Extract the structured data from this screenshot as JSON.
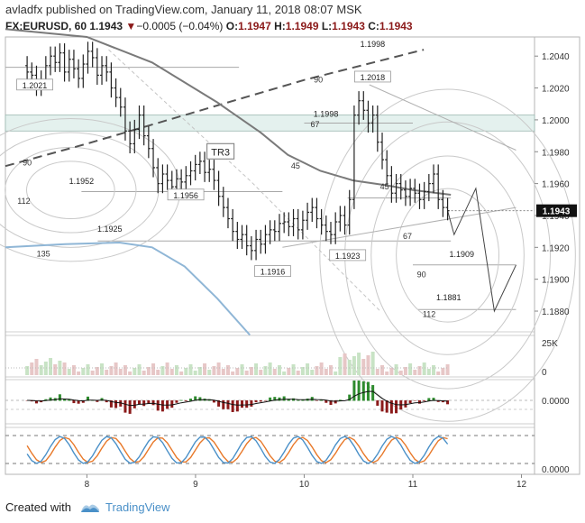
{
  "header": {
    "author": "avladfx",
    "published_text": "published on TradingView.com, January 11, 2018 08:07 MSK",
    "symbol": "FX:EURUSD, 60",
    "last": "1.1943",
    "change_arrow": "▼",
    "change": "−0.0005 (−0.04%)",
    "o_label": "O:",
    "o_value": "1.1947",
    "h_label": "H:",
    "h_value": "1.1949",
    "l_label": "L:",
    "l_value": "1.1943",
    "c_label": "C:",
    "c_value": "1.1943"
  },
  "footer": {
    "created_with": "Created with",
    "brand": "TradingView"
  },
  "colors": {
    "up": "#222222",
    "down": "#222222",
    "macd_up": "#2e8b2e",
    "macd_down": "#8b1a1a",
    "stoch_k": "#4a90c8",
    "stoch_d": "#e8792a",
    "ma_dark": "#7a7a7a",
    "ma_blue": "#8fb6d6",
    "zone_fill": "#e4f1ee"
  },
  "chart_data": {
    "type": "candlestick",
    "symbol": "FX:EURUSD, 60",
    "y_ticks": [
      "1.2040",
      "1.2020",
      "1.2000",
      "1.1980",
      "1.1960",
      "1.1940",
      "1.1920",
      "1.1900",
      "1.1880"
    ],
    "y_range": [
      1.1867,
      1.2052
    ],
    "x_ticks": [
      {
        "label": "8",
        "x": 8
      },
      {
        "label": "9",
        "x": 9
      },
      {
        "label": "10",
        "x": 10
      },
      {
        "label": "11",
        "x": 11
      },
      {
        "label": "12",
        "x": 12
      }
    ],
    "x_range": [
      7.25,
      12.12
    ],
    "last_price_label": "1.1943",
    "closes": [
      1.203,
      1.2028,
      1.2021,
      1.2025,
      1.2034,
      1.204,
      1.2036,
      1.2042,
      1.203,
      1.2038,
      1.2032,
      1.2026,
      1.2035,
      1.2043,
      1.2039,
      1.2028,
      1.2034,
      1.203,
      1.202,
      1.2014,
      1.2008,
      1.1993,
      1.1985,
      1.1994,
      1.2003,
      1.199,
      1.1982,
      1.197,
      1.196,
      1.1966,
      1.1962,
      1.1958,
      1.1963,
      1.1961,
      1.1965,
      1.1968,
      1.1972,
      1.1974,
      1.1967,
      1.1969,
      1.1962,
      1.1952,
      1.1945,
      1.1938,
      1.193,
      1.1925,
      1.1928,
      1.1921,
      1.1918,
      1.1925,
      1.1922,
      1.1928,
      1.1931,
      1.193,
      1.1935,
      1.1936,
      1.1933,
      1.1938,
      1.1931,
      1.1937,
      1.1942,
      1.1945,
      1.1938,
      1.1934,
      1.193,
      1.1928,
      1.1936,
      1.194,
      1.1934,
      1.195,
      1.2003,
      1.2012,
      1.2006,
      1.1998,
      1.2003,
      1.1986,
      1.1975,
      1.1965,
      1.1954,
      1.196,
      1.1956,
      1.1952,
      1.1957,
      1.1954,
      1.195,
      1.1955,
      1.196,
      1.1966,
      1.195,
      1.1945,
      1.1943
    ],
    "projection": [
      [
        11.32,
        1.1943
      ],
      [
        11.38,
        1.1928
      ],
      [
        11.58,
        1.1957
      ],
      [
        11.75,
        1.188
      ],
      [
        11.95,
        1.1909
      ]
    ],
    "sma_dark": [
      [
        7.25,
        1.2057
      ],
      [
        8.0,
        1.2052
      ],
      [
        8.6,
        1.2036
      ],
      [
        9.2,
        1.2011
      ],
      [
        9.6,
        1.1992
      ],
      [
        9.85,
        1.1978
      ],
      [
        10.15,
        1.1968
      ],
      [
        10.45,
        1.1962
      ],
      [
        10.75,
        1.1959
      ],
      [
        11.0,
        1.1956
      ],
      [
        11.35,
        1.1953
      ]
    ],
    "sma_blue": [
      [
        7.25,
        1.192
      ],
      [
        7.8,
        1.1922
      ],
      [
        8.3,
        1.1923
      ],
      [
        8.6,
        1.192
      ],
      [
        8.9,
        1.1908
      ],
      [
        9.2,
        1.1888
      ],
      [
        9.5,
        1.1865
      ]
    ],
    "trend_dash_main": [
      [
        7.25,
        1.1971
      ],
      [
        8.0,
        1.1985
      ],
      [
        9.0,
        1.2005
      ],
      [
        10.0,
        1.2025
      ],
      [
        11.1,
        1.2044
      ]
    ],
    "trend_dash_gray": [
      [
        8.2,
        1.2044
      ],
      [
        9.5,
        1.1962
      ],
      [
        10.7,
        1.188
      ]
    ],
    "trend_lower": [
      [
        9.8,
        1.192
      ],
      [
        11.95,
        1.1945
      ]
    ],
    "trend_upper": [
      [
        10.6,
        1.2022
      ],
      [
        11.95,
        1.1981
      ]
    ],
    "zone": [
      1.2003,
      1.1993
    ],
    "horiz_lines": [
      {
        "price": 1.2033,
        "x0": 7.25,
        "x1": 9.4
      },
      {
        "price": 1.1998,
        "x0": 10.0,
        "x1": 11.0
      },
      {
        "price": 1.1955,
        "x0": 7.95,
        "x1": 9.8
      },
      {
        "price": 1.1951,
        "x0": 10.4,
        "x1": 11.35
      },
      {
        "price": 1.1924,
        "x0": 8.1,
        "x1": 11.35
      },
      {
        "price": 1.1909,
        "x0": 11.0,
        "x1": 11.95
      },
      {
        "price": 1.1881,
        "x0": 11.05,
        "x1": 11.95
      }
    ],
    "fib_arcs": [
      {
        "cx": 11.32,
        "cy": 1.1915,
        "rx": 1.05,
        "ry": 0.0093
      },
      {
        "cx": 7.85,
        "cy": 1.1956,
        "rx": 0.9,
        "ry": 0.004
      }
    ],
    "price_labels": [
      {
        "text": "1.2021",
        "x": 7.52,
        "price": 1.2021,
        "boxed": true
      },
      {
        "text": "1.1998",
        "x": 10.63,
        "price": 1.2047,
        "boxed": false
      },
      {
        "text": "1.2018",
        "x": 10.63,
        "price": 1.2026,
        "boxed": true
      },
      {
        "text": "1.1998",
        "x": 10.2,
        "price": 1.2003,
        "boxed": false
      },
      {
        "text": "1.1952",
        "x": 7.95,
        "price": 1.1961,
        "boxed": false
      },
      {
        "text": "1.1956",
        "x": 8.91,
        "price": 1.1952,
        "boxed": true
      },
      {
        "text": "1.1925",
        "x": 8.21,
        "price": 1.1931,
        "boxed": false
      },
      {
        "text": "1.1916",
        "x": 9.71,
        "price": 1.1904,
        "boxed": true
      },
      {
        "text": "1.1923",
        "x": 10.4,
        "price": 1.1914,
        "boxed": true
      },
      {
        "text": "1.1909",
        "x": 11.45,
        "price": 1.1915,
        "boxed": false
      },
      {
        "text": "1.1881",
        "x": 11.33,
        "price": 1.1888,
        "boxed": false
      }
    ],
    "fib_labels": [
      {
        "text": "90",
        "x": 10.13,
        "price": 1.2025
      },
      {
        "text": "67",
        "x": 10.1,
        "price": 1.1997
      },
      {
        "text": "45",
        "x": 9.92,
        "price": 1.1971
      },
      {
        "text": "45",
        "x": 10.74,
        "price": 1.1958
      },
      {
        "text": "67",
        "x": 10.95,
        "price": 1.1927
      },
      {
        "text": "90",
        "x": 11.08,
        "price": 1.1903
      },
      {
        "text": "112",
        "x": 11.15,
        "price": 1.1878
      },
      {
        "text": "90",
        "x": 7.45,
        "price": 1.1973
      },
      {
        "text": "112",
        "x": 7.42,
        "price": 1.1949
      },
      {
        "text": "135",
        "x": 7.6,
        "price": 1.1916
      }
    ],
    "tr_label": {
      "text": "TR3",
      "x": 9.23,
      "price": 1.198
    },
    "volume_axis": [
      "25K",
      "0"
    ],
    "macd_axis": "0.0000",
    "stoch_axis": "0.0000"
  }
}
